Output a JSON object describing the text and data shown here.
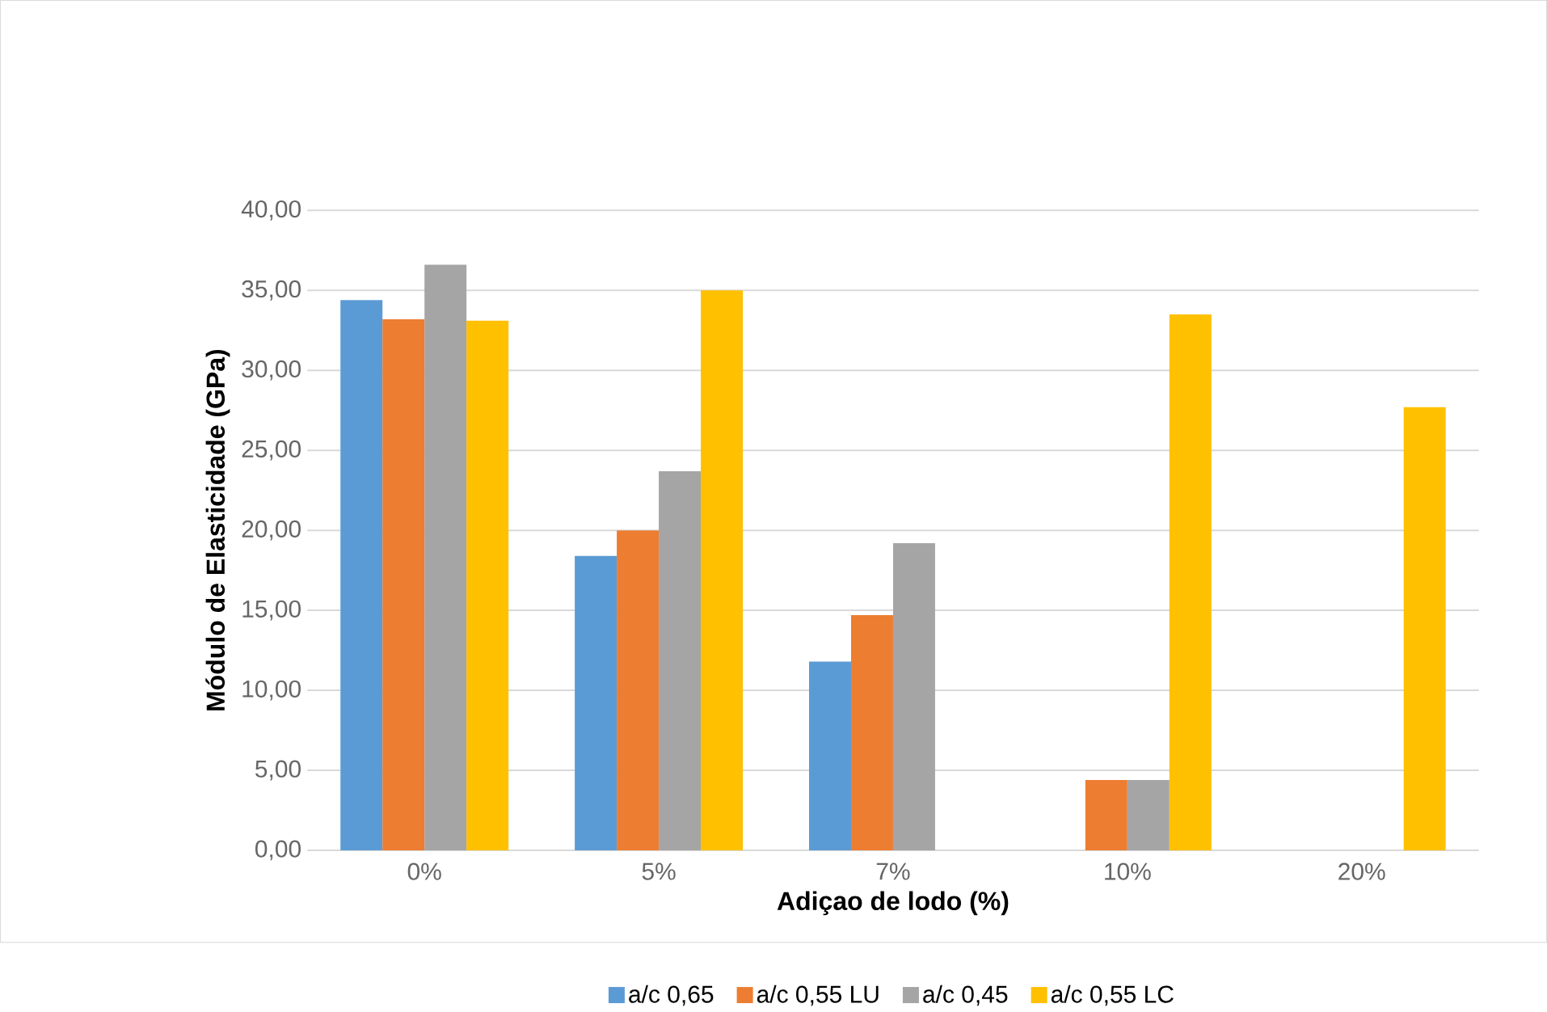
{
  "chart_data": {
    "type": "bar",
    "xlabel": "Adiçao de lodo (%)",
    "ylabel": "Módulo de Elasticidade (GPa)",
    "categories": [
      "0%",
      "5%",
      "7%",
      "10%",
      "20%"
    ],
    "series": [
      {
        "name": "a/c 0,65",
        "color": "#5b9bd5",
        "values": [
          34.4,
          18.4,
          11.8,
          0,
          null
        ]
      },
      {
        "name": "a/c 0,55 LU",
        "color": "#ed7d31",
        "values": [
          33.2,
          20.0,
          14.7,
          4.4,
          null
        ]
      },
      {
        "name": "a/c 0,45",
        "color": "#a5a5a5",
        "values": [
          36.6,
          23.7,
          19.2,
          4.4,
          null
        ]
      },
      {
        "name": "a/c 0,55 LC",
        "color": "#ffc000",
        "values": [
          33.1,
          35.0,
          null,
          33.5,
          27.7
        ]
      }
    ],
    "ylim": [
      0,
      40
    ],
    "yticks": [
      {
        "value": 0,
        "label": "0,00"
      },
      {
        "value": 5,
        "label": "5,00"
      },
      {
        "value": 10,
        "label": "10,00"
      },
      {
        "value": 15,
        "label": "15,00"
      },
      {
        "value": 20,
        "label": "20,00"
      },
      {
        "value": 25,
        "label": "25,00"
      },
      {
        "value": 30,
        "label": "30,00"
      },
      {
        "value": 35,
        "label": "35,00"
      },
      {
        "value": 40,
        "label": "40,00"
      }
    ],
    "grid": "y",
    "legend": "bottom"
  }
}
